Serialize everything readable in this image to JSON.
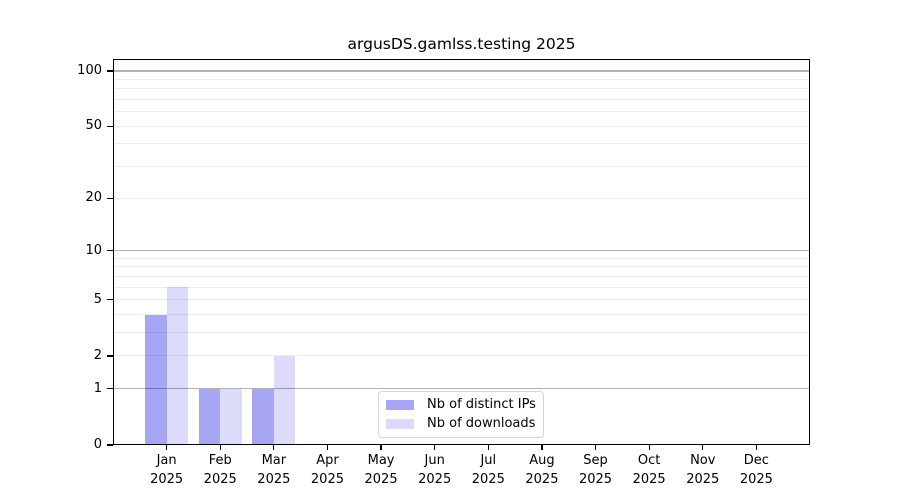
{
  "title": "argusDS.gamlss.testing 2025",
  "chart_data": {
    "type": "bar",
    "title": "argusDS.gamlss.testing 2025",
    "y_scale": "log1p",
    "grid": true,
    "legend_position": "lower center inside",
    "xlabel": "",
    "ylabel": "",
    "categories": [
      "Jan 2025",
      "Feb 2025",
      "Mar 2025",
      "Apr 2025",
      "May 2025",
      "Jun 2025",
      "Jul 2025",
      "Aug 2025",
      "Sep 2025",
      "Oct 2025",
      "Nov 2025",
      "Dec 2025"
    ],
    "series": [
      {
        "name": "Nb of distinct IPs",
        "color": "#a6a6f5",
        "values": [
          4,
          1,
          1,
          0,
          0,
          0,
          0,
          0,
          0,
          0,
          0,
          0
        ]
      },
      {
        "name": "Nb of downloads",
        "color": "#dcdcfa",
        "values": [
          6,
          1,
          2,
          0,
          0,
          0,
          0,
          0,
          0,
          0,
          0,
          0
        ]
      }
    ],
    "ylim": [
      0,
      116
    ],
    "y_ticks": [
      0,
      1,
      2,
      5,
      10,
      20,
      50,
      100
    ],
    "y_tick_labels": [
      "0",
      "1",
      "2",
      "5",
      "10",
      "20",
      "50",
      "100"
    ],
    "y_major_gridlines": [
      1,
      10,
      100
    ],
    "y_minor_gridlines": [
      2,
      3,
      4,
      5,
      6,
      7,
      8,
      9,
      20,
      30,
      40,
      50,
      60,
      70,
      80,
      90
    ]
  },
  "colors": {
    "distinct_ips_bar": "#a6a6f5",
    "downloads_bar": "#dcdcfa",
    "axis": "#000000",
    "major_grid": "#b3b3b3",
    "minor_grid": "#ececec",
    "legend_border": "#d6d6d6",
    "background": "#ffffff"
  }
}
